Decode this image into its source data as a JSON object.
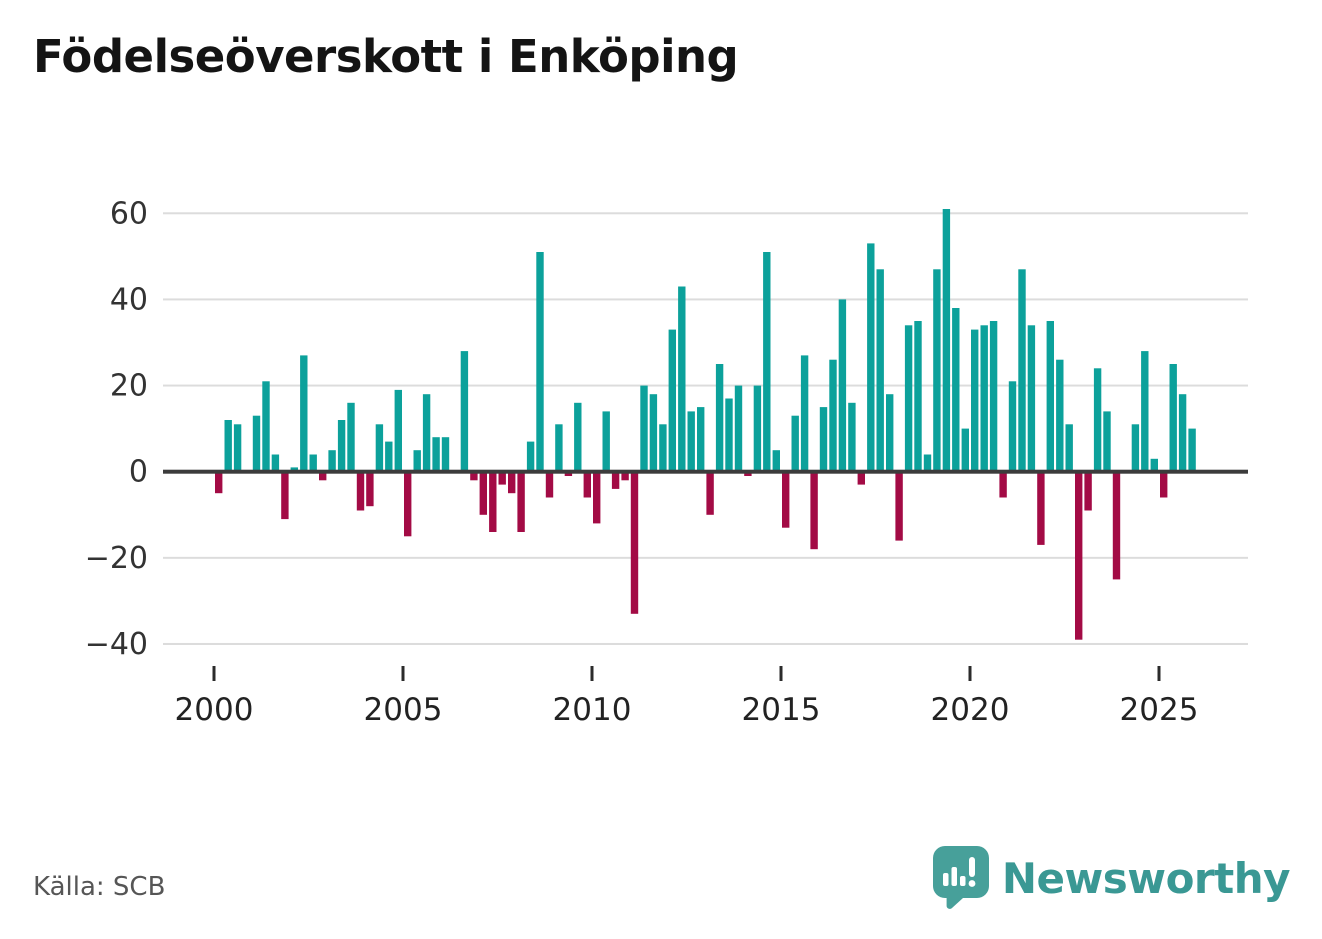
{
  "title": "Födelseöverskott i Enköping",
  "source": "Källa: SCB",
  "branding": {
    "name": "Newsworthy"
  },
  "colors": {
    "positive_bar": "#0ca19b",
    "negative_bar": "#a30b45",
    "gridline": "#dcdcdc",
    "zero_line": "#3c3c3c",
    "axis_text": "#333333",
    "title_text": "#141414",
    "source_text": "#565656",
    "brand_teal": "#3a9894"
  },
  "chart_data": {
    "type": "bar",
    "frequency": "quarterly",
    "title": "Födelseöverskott i Enköping",
    "xlabel": "",
    "ylabel": "",
    "grid": true,
    "ylim": [
      -40,
      60
    ],
    "y_ticks": [
      60,
      40,
      20,
      0,
      -20,
      -40
    ],
    "y_tick_labels": [
      "60",
      "40",
      "20",
      "0",
      "−20",
      "−40"
    ],
    "x_tick_years": [
      2000,
      2005,
      2010,
      2015,
      2020,
      2025
    ],
    "x_tick_labels": [
      "2000",
      "2005",
      "2010",
      "2015",
      "2020",
      "2025"
    ],
    "years": [
      {
        "year": 2000,
        "values": [
          -5,
          12,
          11,
          0
        ]
      },
      {
        "year": 2001,
        "values": [
          13,
          21,
          4,
          -11
        ]
      },
      {
        "year": 2002,
        "values": [
          1,
          27,
          4,
          -2
        ]
      },
      {
        "year": 2003,
        "values": [
          5,
          12,
          16,
          -9
        ]
      },
      {
        "year": 2004,
        "values": [
          -8,
          11,
          7,
          19
        ]
      },
      {
        "year": 2005,
        "values": [
          -15,
          5,
          18,
          8
        ]
      },
      {
        "year": 2006,
        "values": [
          8,
          0,
          28,
          -2
        ]
      },
      {
        "year": 2007,
        "values": [
          -10,
          -14,
          -3,
          -5
        ]
      },
      {
        "year": 2008,
        "values": [
          -14,
          7,
          51,
          -6
        ]
      },
      {
        "year": 2009,
        "values": [
          11,
          -1,
          16,
          -6
        ]
      },
      {
        "year": 2010,
        "values": [
          -12,
          14,
          -4,
          -2
        ]
      },
      {
        "year": 2011,
        "values": [
          -33,
          20,
          18,
          11
        ]
      },
      {
        "year": 2012,
        "values": [
          33,
          43,
          14,
          15
        ]
      },
      {
        "year": 2013,
        "values": [
          -10,
          25,
          17,
          20
        ]
      },
      {
        "year": 2014,
        "values": [
          -1,
          20,
          51,
          5
        ]
      },
      {
        "year": 2015,
        "values": [
          -13,
          13,
          27,
          -18
        ]
      },
      {
        "year": 2016,
        "values": [
          15,
          26,
          40,
          16
        ]
      },
      {
        "year": 2017,
        "values": [
          -3,
          53,
          47,
          18
        ]
      },
      {
        "year": 2018,
        "values": [
          -16,
          34,
          35,
          4
        ]
      },
      {
        "year": 2019,
        "values": [
          47,
          61,
          38,
          10
        ]
      },
      {
        "year": 2020,
        "values": [
          33,
          34,
          35,
          -6
        ]
      },
      {
        "year": 2021,
        "values": [
          21,
          47,
          34,
          -17
        ]
      },
      {
        "year": 2022,
        "values": [
          35,
          26,
          11,
          -39
        ]
      },
      {
        "year": 2023,
        "values": [
          -9,
          24,
          14,
          -25
        ]
      },
      {
        "year": 2024,
        "values": [
          0,
          11,
          28,
          3
        ]
      },
      {
        "year": 2025,
        "values": [
          -6,
          25,
          18,
          10
        ]
      }
    ]
  }
}
